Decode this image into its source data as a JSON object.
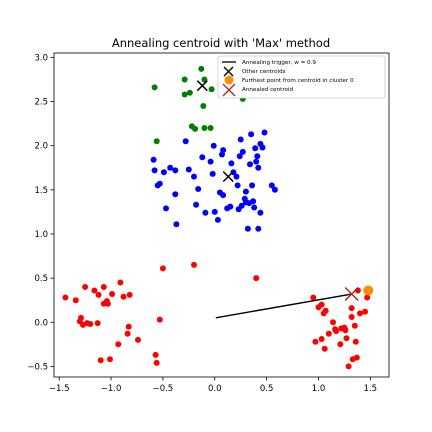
{
  "chart_data": {
    "type": "scatter",
    "title": "Annealing centroid with 'Max' method",
    "xlabel": "",
    "ylabel": "",
    "xlim": [
      -1.55,
      1.68
    ],
    "ylim": [
      -0.62,
      3.05
    ],
    "x_ticks": [
      -1.5,
      -1.0,
      -0.5,
      0.0,
      0.5,
      1.0,
      1.5
    ],
    "x_tick_labels": [
      "−1.5",
      "−1.0",
      "−0.5",
      "0.0",
      "0.5",
      "1.0",
      "1.5"
    ],
    "y_ticks": [
      -0.5,
      0.0,
      0.5,
      1.0,
      1.5,
      2.0,
      2.5,
      3.0
    ],
    "y_tick_labels": [
      "−0.5",
      "0.0",
      "0.5",
      "1.0",
      "1.5",
      "2.0",
      "2.5",
      "3.0"
    ],
    "grid": false,
    "legend_position": "top-right",
    "legend": [
      {
        "label": "Annealing trigger, w = 0.9",
        "marker": "line",
        "color": "#000000"
      },
      {
        "label": "Other centroids",
        "marker": "x",
        "color": "#000000"
      },
      {
        "label": "Furthest point from centroid in cluster 0",
        "marker": "circle",
        "color": "#ff8c00"
      },
      {
        "label": "Annealed centroid",
        "marker": "x",
        "color": "#a52a2a"
      }
    ],
    "series": [
      {
        "color": "#008000",
        "points": [
          [
            -0.58,
            2.66
          ],
          [
            -0.29,
            2.75
          ],
          [
            -0.29,
            2.58
          ],
          [
            -0.24,
            2.6
          ],
          [
            -0.13,
            2.87
          ],
          [
            -0.1,
            2.75
          ],
          [
            -0.11,
            2.45
          ],
          [
            -0.03,
            2.64
          ],
          [
            0.27,
            2.53
          ],
          [
            -0.22,
            2.22
          ],
          [
            -0.19,
            2.19
          ],
          [
            -0.1,
            2.2
          ],
          [
            -0.04,
            2.2
          ],
          [
            -0.56,
            2.05
          ]
        ]
      },
      {
        "color": "#0000ff",
        "points": [
          [
            -0.59,
            1.84
          ],
          [
            -0.58,
            1.72
          ],
          [
            -0.55,
            1.55
          ],
          [
            -0.53,
            1.57
          ],
          [
            -0.49,
            1.7
          ],
          [
            -0.47,
            1.29
          ],
          [
            -0.43,
            1.75
          ],
          [
            -0.38,
            1.72
          ],
          [
            -0.38,
            1.45
          ],
          [
            -0.37,
            1.11
          ],
          [
            -0.28,
            2.05
          ],
          [
            -0.25,
            1.73
          ],
          [
            -0.2,
            1.65
          ],
          [
            -0.18,
            1.33
          ],
          [
            -0.16,
            1.51
          ],
          [
            -0.12,
            1.87
          ],
          [
            -0.09,
            1.24
          ],
          [
            -0.04,
            1.82
          ],
          [
            -0.02,
            1.68
          ],
          [
            0.0,
            1.25
          ],
          [
            0.03,
            1.16
          ],
          [
            0.05,
            1.47
          ],
          [
            0.07,
            1.9
          ],
          [
            0.08,
            1.44
          ],
          [
            0.08,
            1.95
          ],
          [
            0.12,
            1.29
          ],
          [
            0.15,
            1.31
          ],
          [
            0.16,
            1.8
          ],
          [
            0.18,
            1.7
          ],
          [
            0.21,
            1.65
          ],
          [
            0.23,
            1.28
          ],
          [
            0.24,
            1.88
          ],
          [
            0.25,
            2.07
          ],
          [
            0.26,
            1.32
          ],
          [
            0.27,
            1.93
          ],
          [
            0.29,
            1.4
          ],
          [
            0.3,
            1.36
          ],
          [
            0.32,
            1.06
          ],
          [
            0.33,
            1.35
          ],
          [
            0.34,
            1.79
          ],
          [
            0.35,
            2.13
          ],
          [
            0.36,
            1.55
          ],
          [
            0.37,
            1.37
          ],
          [
            0.38,
            1.3
          ],
          [
            0.39,
            1.97
          ],
          [
            0.4,
            1.82
          ],
          [
            0.41,
            1.88
          ],
          [
            0.42,
            1.75
          ],
          [
            0.42,
            1.06
          ],
          [
            0.44,
            2.02
          ],
          [
            0.44,
            1.24
          ],
          [
            0.46,
            1.98
          ],
          [
            0.48,
            2.15
          ],
          [
            0.55,
            1.55
          ],
          [
            0.58,
            1.5
          ],
          [
            0.3,
            1.48
          ],
          [
            -0.01,
            2.0
          ],
          [
            0.22,
            1.55
          ]
        ]
      },
      {
        "color": "#ff0000",
        "points": [
          [
            -1.44,
            0.28
          ],
          [
            -1.34,
            0.25
          ],
          [
            -1.3,
            0.01
          ],
          [
            -1.29,
            0.05
          ],
          [
            -1.27,
            -0.03
          ],
          [
            -1.25,
            0.4
          ],
          [
            -1.23,
            -0.01
          ],
          [
            -1.2,
            -0.02
          ],
          [
            -1.16,
            0.36
          ],
          [
            -1.13,
            -0.01
          ],
          [
            -1.12,
            0.31
          ],
          [
            -1.1,
            -0.43
          ],
          [
            -1.07,
            0.21
          ],
          [
            -1.07,
            0.4
          ],
          [
            -1.04,
            0.24
          ],
          [
            -1.03,
            0.21
          ],
          [
            -1.01,
            -0.42
          ],
          [
            -0.99,
            0.32
          ],
          [
            -0.93,
            -0.25
          ],
          [
            -0.91,
            0.45
          ],
          [
            -0.88,
            0.29
          ],
          [
            -0.84,
            -0.13
          ],
          [
            -0.83,
            -0.05
          ],
          [
            -0.82,
            0.31
          ],
          [
            -0.74,
            -0.2
          ],
          [
            -0.57,
            -0.37
          ],
          [
            -0.56,
            -0.46
          ],
          [
            -0.53,
            0.03
          ],
          [
            -0.5,
            0.61
          ],
          [
            -0.2,
            0.65
          ],
          [
            0.4,
            0.5
          ],
          [
            0.95,
            0.28
          ],
          [
            0.97,
            -0.22
          ],
          [
            1.0,
            0.17
          ],
          [
            1.03,
            -0.19
          ],
          [
            1.03,
            0.2
          ],
          [
            1.05,
            0.1
          ],
          [
            1.06,
            -0.3
          ],
          [
            1.07,
            0.13
          ],
          [
            1.1,
            -0.13
          ],
          [
            1.14,
            0.0
          ],
          [
            1.16,
            -0.08
          ],
          [
            1.17,
            -0.1
          ],
          [
            1.21,
            -0.25
          ],
          [
            1.22,
            -0.07
          ],
          [
            1.25,
            -0.06
          ],
          [
            1.26,
            -0.09
          ],
          [
            1.27,
            -0.18
          ],
          [
            1.29,
            -0.5
          ],
          [
            1.32,
            0.16
          ],
          [
            1.32,
            0.06
          ],
          [
            1.35,
            -0.04
          ],
          [
            1.36,
            -0.22
          ],
          [
            1.37,
            -0.4
          ],
          [
            1.38,
            0.36
          ],
          [
            1.4,
            0.1
          ],
          [
            1.45,
            0.12
          ],
          [
            1.47,
            0.28
          ],
          [
            1.33,
            -0.42
          ]
        ]
      }
    ],
    "other_centroids": [
      [
        -0.12,
        2.68
      ],
      [
        0.13,
        1.65
      ]
    ],
    "annealed_centroid": [
      1.32,
      0.32
    ],
    "furthest_point": [
      1.48,
      0.36
    ],
    "annealing_line": [
      [
        0.01,
        0.05
      ],
      [
        1.32,
        0.32
      ]
    ]
  }
}
